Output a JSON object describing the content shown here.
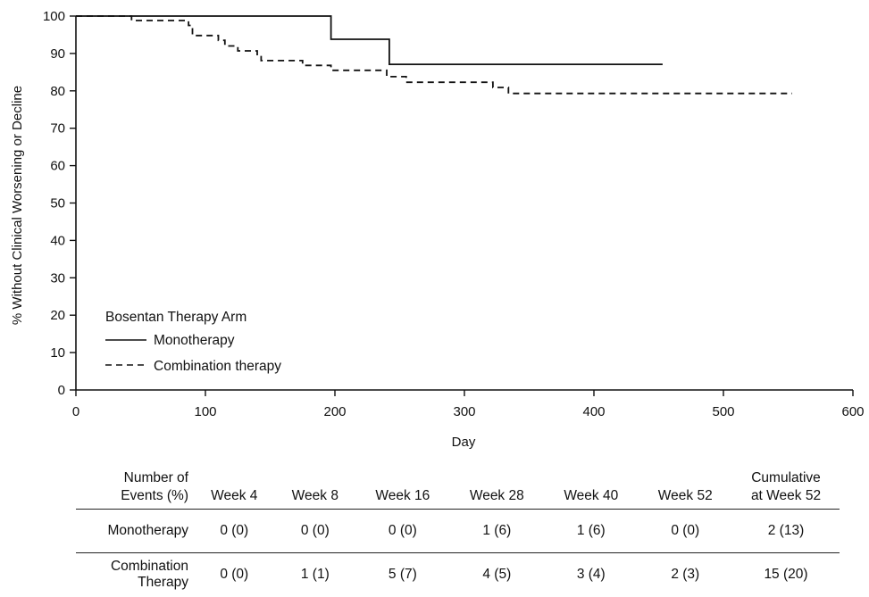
{
  "chart_data": {
    "type": "line",
    "xlabel": "Day",
    "ylabel": "% Without Clinical Worsening or Decline",
    "xlim": [
      0,
      600
    ],
    "ylim": [
      0,
      100
    ],
    "xticks": [
      0,
      100,
      200,
      300,
      400,
      500,
      600
    ],
    "yticks": [
      0,
      10,
      20,
      30,
      40,
      50,
      60,
      70,
      80,
      90,
      100
    ],
    "grid": false,
    "legend_title": "Bosentan Therapy Arm",
    "legend_position": "bottom-left",
    "series": [
      {
        "name": "Monotherapy",
        "style": "solid",
        "color": "#111111",
        "step": true,
        "points": [
          [
            0,
            100
          ],
          [
            197,
            100
          ],
          [
            197,
            93.8
          ],
          [
            242,
            93.8
          ],
          [
            242,
            87.1
          ],
          [
            453,
            87.1
          ]
        ]
      },
      {
        "name": "Combination therapy",
        "style": "dashed",
        "color": "#111111",
        "step": true,
        "points": [
          [
            0,
            100
          ],
          [
            43,
            100
          ],
          [
            43,
            98.8
          ],
          [
            87,
            98.8
          ],
          [
            87,
            97.5
          ],
          [
            90,
            97.5
          ],
          [
            90,
            94.8
          ],
          [
            110,
            94.8
          ],
          [
            110,
            93.5
          ],
          [
            115,
            93.5
          ],
          [
            115,
            92
          ],
          [
            125,
            92
          ],
          [
            125,
            90.7
          ],
          [
            140,
            90.7
          ],
          [
            140,
            89.4
          ],
          [
            143,
            89.4
          ],
          [
            143,
            88.1
          ],
          [
            175,
            88.1
          ],
          [
            175,
            86.8
          ],
          [
            197,
            86.8
          ],
          [
            197,
            85.5
          ],
          [
            240,
            85.5
          ],
          [
            240,
            83.8
          ],
          [
            255,
            83.8
          ],
          [
            255,
            82.3
          ],
          [
            322,
            82.3
          ],
          [
            322,
            80.9
          ],
          [
            334,
            80.9
          ],
          [
            334,
            79.3
          ],
          [
            553,
            79.3
          ]
        ]
      }
    ]
  },
  "events_table": {
    "row_header_label": "Number of Events (%)",
    "columns": [
      "Week 4",
      "Week 8",
      "Week 16",
      "Week 28",
      "Week 40",
      "Week 52",
      "Cumulative at Week 52"
    ],
    "rows": [
      {
        "label": "Monotherapy",
        "values": [
          "0 (0)",
          "0 (0)",
          "0 (0)",
          "1 (6)",
          "1 (6)",
          "0 (0)",
          "2 (13)"
        ]
      },
      {
        "label": "Combination Therapy",
        "values": [
          "0 (0)",
          "1 (1)",
          "5 (7)",
          "4 (5)",
          "3 (4)",
          "2 (3)",
          "15 (20)"
        ]
      }
    ]
  }
}
